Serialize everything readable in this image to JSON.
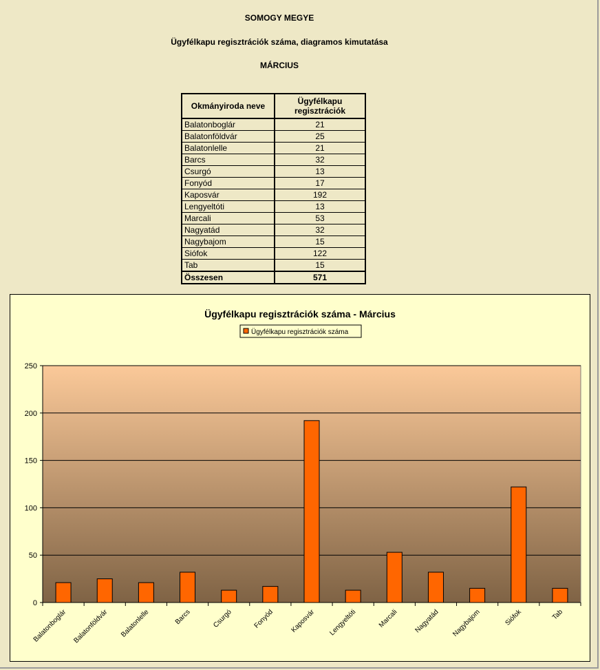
{
  "header": {
    "line1": "SOMOGY MEGYE",
    "line2": "Ügyfélkapu regisztrációk száma, diagramos kimutatása",
    "line3": "MÁRCIUS"
  },
  "table": {
    "col1_header": "Okmányiroda neve",
    "col2_header_line1": "Ügyfélkapu",
    "col2_header_line2": "regisztrációk",
    "rows": [
      {
        "name": "Balatonboglár",
        "value": "21"
      },
      {
        "name": "Balatonföldvár",
        "value": "25"
      },
      {
        "name": "Balatonlelle",
        "value": "21"
      },
      {
        "name": "Barcs",
        "value": "32"
      },
      {
        "name": "Csurgó",
        "value": "13"
      },
      {
        "name": "Fonyód",
        "value": "17"
      },
      {
        "name": "Kaposvár",
        "value": "192"
      },
      {
        "name": "Lengyeltóti",
        "value": "13"
      },
      {
        "name": "Marcali",
        "value": "53"
      },
      {
        "name": "Nagyatád",
        "value": "32"
      },
      {
        "name": "Nagybajom",
        "value": "15"
      },
      {
        "name": "Siófok",
        "value": "122"
      },
      {
        "name": "Tab",
        "value": "15"
      }
    ],
    "total_label": "Összesen",
    "total_value": "571"
  },
  "chart_data": {
    "type": "bar",
    "title": "Ügyfélkapu regisztrációk száma - Március",
    "categories": [
      "Balatonboglár",
      "Balatonföldvár",
      "Balatonlelle",
      "Barcs",
      "Csurgó",
      "Fonyód",
      "Kaposvár",
      "Lengyeltóti",
      "Marcali",
      "Nagyatád",
      "Nagybajom",
      "Siófok",
      "Tab"
    ],
    "series": [
      {
        "name": "Ügyfélkapu regisztrációk száma",
        "values": [
          21,
          25,
          21,
          32,
          13,
          17,
          192,
          13,
          53,
          32,
          15,
          122,
          15
        ]
      }
    ],
    "ylim": [
      0,
      250
    ],
    "yticks": [
      0,
      50,
      100,
      150,
      200,
      250
    ],
    "grid": true,
    "legend_position": "top-center",
    "colors": {
      "bar": "#FF6600",
      "bar_stroke": "#000000",
      "plot_top": "#FBC999",
      "plot_bottom": "#7F6345",
      "chart_bg": "#FFFFCC",
      "page_bg": "#EEE8C6"
    }
  }
}
